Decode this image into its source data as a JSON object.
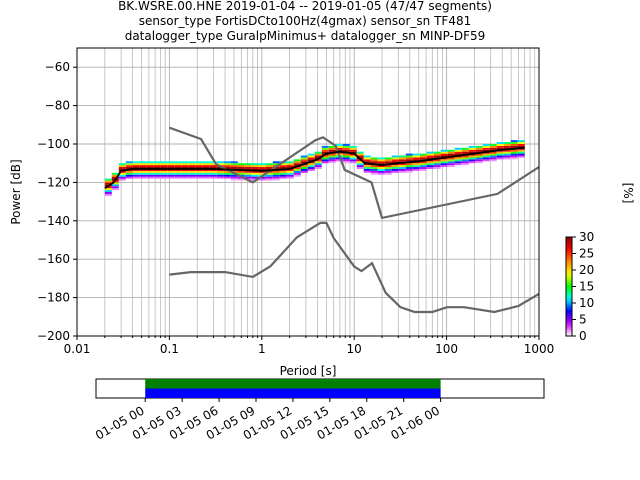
{
  "title": {
    "line1": "BK.WSRE.00.HNE   2019-01-04 -- 2019-01-05  (47/47 segments)",
    "line2": "sensor_type FortisDCto100Hz(4gmax) sensor_sn TF481",
    "line3": "datalogger_type GuralpMinimus+ datalogger_sn MINP-DF59"
  },
  "chart_data": [
    {
      "type": "heatmap",
      "xlabel": "Period [s]",
      "ylabel": "Power [dB]",
      "xscale": "log",
      "xlim": [
        0.01,
        1000
      ],
      "ylim": [
        -200,
        -50
      ],
      "xticks": [
        {
          "value": 0.01,
          "label": "0.01"
        },
        {
          "value": 0.1,
          "label": "0.1"
        },
        {
          "value": 1,
          "label": "1"
        },
        {
          "value": 10,
          "label": "10"
        },
        {
          "value": 100,
          "label": "100"
        },
        {
          "value": 1000,
          "label": "1000"
        }
      ],
      "yticks": [
        {
          "value": -60,
          "label": "−60"
        },
        {
          "value": -80,
          "label": "−80"
        },
        {
          "value": -100,
          "label": "−100"
        },
        {
          "value": -120,
          "label": "−120"
        },
        {
          "value": -140,
          "label": "−140"
        },
        {
          "value": -160,
          "label": "−160"
        },
        {
          "value": -180,
          "label": "−180"
        },
        {
          "value": -200,
          "label": "−200"
        }
      ],
      "grid": true,
      "mode_line": {
        "x": [
          0.02,
          0.025,
          0.03,
          0.04,
          0.1,
          0.3,
          1,
          2,
          4,
          5,
          7,
          10,
          13,
          20,
          30,
          50,
          100,
          200,
          400,
          700
        ],
        "y": [
          -123,
          -120,
          -114,
          -113,
          -113,
          -113,
          -114,
          -113,
          -108,
          -105,
          -104,
          -105,
          -110,
          -111,
          -110,
          -109,
          -107,
          -105,
          -103,
          -102
        ]
      },
      "noise_models": [
        {
          "name": "NHNM",
          "x": [
            0.1,
            0.22,
            0.32,
            0.8,
            3.8,
            4.6,
            6.3,
            7.9,
            15.4,
            20,
            354.8,
            1000
          ],
          "y": [
            -91.5,
            -97.4,
            -110.5,
            -120,
            -98,
            -96.5,
            -101,
            -113.5,
            -120,
            -138.5,
            -126,
            -112
          ]
        },
        {
          "name": "NLNM",
          "x": [
            0.1,
            0.17,
            0.4,
            0.8,
            1.24,
            2.4,
            4.3,
            5,
            6,
            10,
            12,
            15.6,
            21.9,
            31.6,
            45,
            70,
            101,
            154,
            328,
            600,
            1000
          ],
          "y": [
            -168,
            -166.7,
            -166.7,
            -169.2,
            -163.7,
            -148.6,
            -141.1,
            -141.1,
            -149,
            -163.8,
            -166.2,
            -162.1,
            -177.5,
            -185,
            -187.5,
            -187.5,
            -185,
            -185,
            -187.5,
            -184.4,
            -178
          ]
        }
      ]
    },
    {
      "type": "colorbar",
      "label": "[%]",
      "range": [
        0,
        30
      ],
      "ticks": [
        {
          "value": 0,
          "label": "0"
        },
        {
          "value": 5,
          "label": "5"
        },
        {
          "value": 10,
          "label": "10"
        },
        {
          "value": 15,
          "label": "15"
        },
        {
          "value": 20,
          "label": "20"
        },
        {
          "value": 25,
          "label": "25"
        },
        {
          "value": 30,
          "label": "30"
        }
      ],
      "colors": [
        "#ffffff",
        "#cc00ff",
        "#0000ff",
        "#00ffff",
        "#00ff00",
        "#ffff00",
        "#ff8800",
        "#ff0000",
        "#880000"
      ]
    },
    {
      "type": "timeline",
      "range_hours": [
        -4,
        32.4
      ],
      "data_start_hour": 0,
      "data_end_hour": 24,
      "bands": [
        {
          "color": "#008000"
        },
        {
          "color": "#0000ff"
        }
      ],
      "ticks": [
        {
          "hour": 0,
          "label": "01-05 00"
        },
        {
          "hour": 3,
          "label": "01-05 03"
        },
        {
          "hour": 6,
          "label": "01-05 06"
        },
        {
          "hour": 9,
          "label": "01-05 09"
        },
        {
          "hour": 12,
          "label": "01-05 12"
        },
        {
          "hour": 15,
          "label": "01-05 15"
        },
        {
          "hour": 18,
          "label": "01-05 18"
        },
        {
          "hour": 21,
          "label": "01-05 21"
        },
        {
          "hour": 24,
          "label": "01-06 00"
        }
      ]
    }
  ]
}
